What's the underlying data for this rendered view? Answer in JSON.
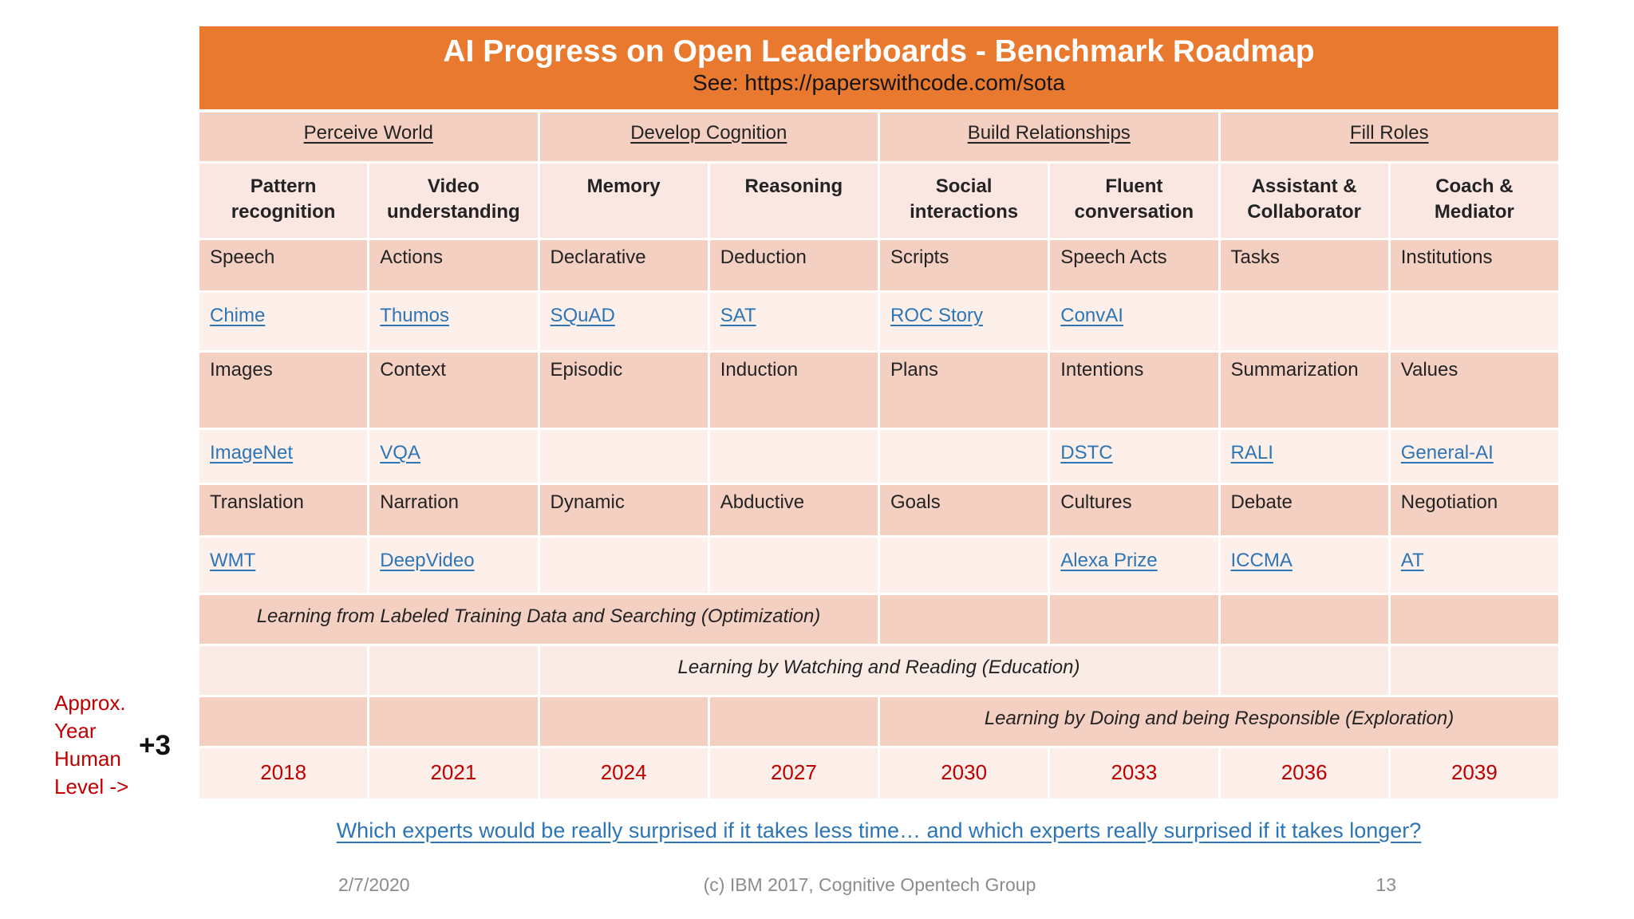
{
  "banner": {
    "title": "AI Progress on Open Leaderboards - Benchmark Roadmap",
    "subtitle": "See:  https://paperswithcode.com/sota"
  },
  "groups": [
    "Perceive World",
    "Develop Cognition",
    "Build Relationships",
    "Fill Roles"
  ],
  "columns": [
    "Pattern\nrecognition",
    "Video\nunderstanding",
    "Memory",
    "Reasoning",
    "Social\ninteractions",
    "Fluent\nconversation",
    "Assistant &\nCollaborator",
    "Coach &\nMediator"
  ],
  "topic_rows": [
    [
      "Speech",
      "Actions",
      "Declarative",
      "Deduction",
      "Scripts",
      "Speech Acts",
      "Tasks",
      "Institutions"
    ],
    [
      "Images",
      "Context",
      "Episodic",
      "Induction",
      "Plans",
      "Intentions",
      "Summarization",
      "Values"
    ],
    [
      "Translation",
      "Narration",
      "Dynamic",
      "Abductive",
      "Goals",
      "Cultures",
      "Debate",
      "Negotiation"
    ]
  ],
  "link_rows": [
    [
      "Chime",
      "Thumos",
      "SQuAD",
      "SAT",
      "ROC Story",
      "ConvAI",
      "",
      ""
    ],
    [
      "ImageNet",
      "VQA",
      "",
      "",
      "",
      "DSTC",
      "RALI",
      "General-AI"
    ],
    [
      "WMT",
      "DeepVideo",
      "",
      "",
      "",
      "Alexa Prize",
      "ICCMA",
      "AT"
    ]
  ],
  "learning": [
    "Learning from Labeled Training Data and Searching (Optimization)",
    "Learning by Watching and Reading (Education)",
    "Learning by Doing and being Responsible (Exploration)"
  ],
  "years": [
    "2018",
    "2021",
    "2024",
    "2027",
    "2030",
    "2033",
    "2036",
    "2039"
  ],
  "left_note": {
    "lines": [
      "Approx.",
      "Year",
      "Human",
      "Level ->"
    ],
    "plus": "+3"
  },
  "bottom_link": "Which experts would be really surprised if it takes less time…  and which experts really surprised if it takes longer?",
  "footer": {
    "date": "2/7/2020",
    "copyright": "(c) IBM 2017, Cognitive Opentech Group",
    "page": "13"
  },
  "colors": {
    "banner_orange": "#E9792E",
    "cell_dark_peach": "#F4D0C3",
    "cell_header_peach": "#FAE7E1",
    "cell_light_peach": "#FDF0EB",
    "link_blue": "#2E75B6",
    "accent_red": "#C00000",
    "footer_gray": "#8C8C8C"
  }
}
